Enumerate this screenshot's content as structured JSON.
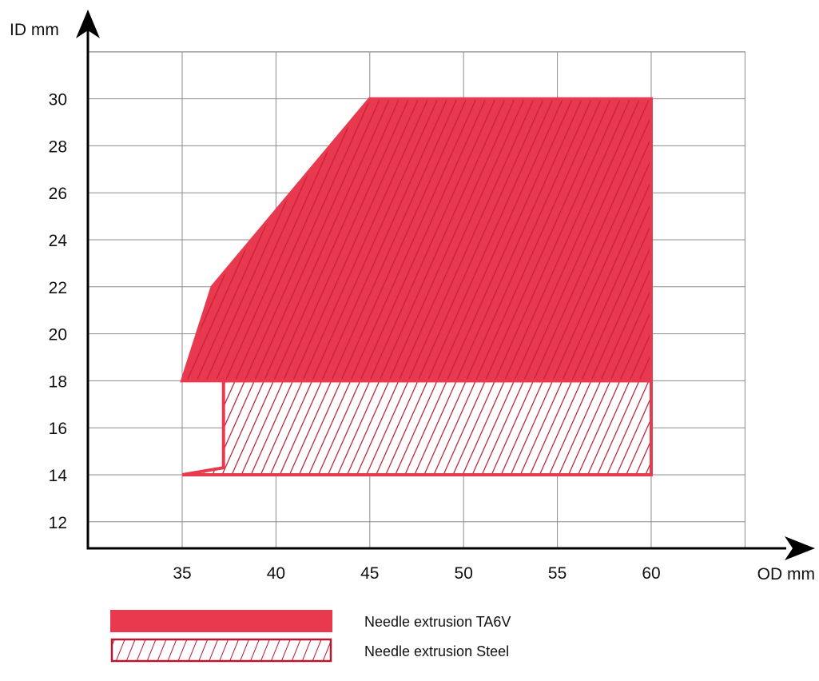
{
  "chart_data": {
    "type": "area",
    "xlabel": "OD mm",
    "ylabel": "ID mm",
    "x_ticks": [
      35,
      40,
      45,
      50,
      55,
      60
    ],
    "y_ticks": [
      12,
      14,
      16,
      18,
      20,
      22,
      24,
      26,
      28,
      30
    ],
    "xlim": [
      30,
      65
    ],
    "ylim": [
      11,
      32
    ],
    "grid": true,
    "legend_position": "bottom",
    "series": [
      {
        "name": "Needle extrusion Steel",
        "style": "hatched",
        "color": "#e8394f",
        "hatch_color": "#c51f38",
        "points": [
          [
            35,
            14
          ],
          [
            60,
            14
          ],
          [
            60,
            18
          ],
          [
            37.2,
            18
          ],
          [
            37.2,
            14.3
          ]
        ]
      },
      {
        "name": "Needle extrusion TA6V",
        "style": "filled-hatched",
        "color": "#e8394f",
        "hatch_color": "#c51f38",
        "points": [
          [
            35,
            18
          ],
          [
            36.6,
            22
          ],
          [
            45,
            30
          ],
          [
            60,
            30
          ],
          [
            60,
            18
          ]
        ]
      }
    ]
  },
  "legend": {
    "ta6v_label": "Needle extrusion TA6V",
    "steel_label": "Needle extrusion Steel"
  }
}
